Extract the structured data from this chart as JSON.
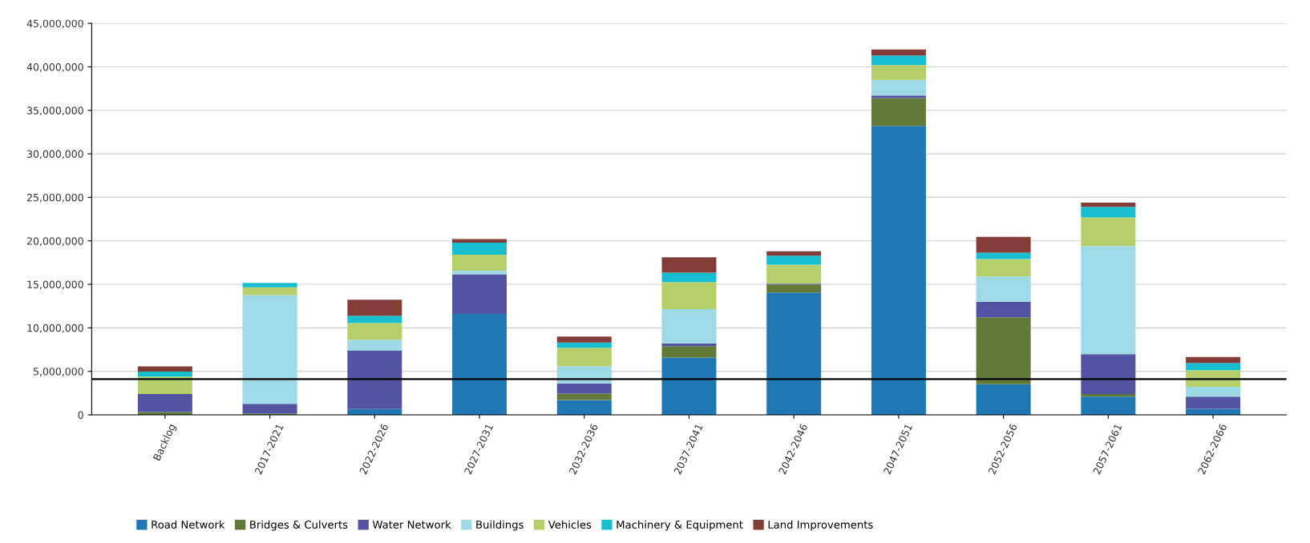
{
  "chart_data": {
    "type": "bar",
    "stacked": true,
    "categories": [
      "Backlog",
      "2017-2021",
      "2022-2026",
      "2027-2031",
      "2032-2036",
      "2037-2041",
      "2042-2046",
      "2047-2051",
      "2052-2056",
      "2057-2061",
      "2062-2066"
    ],
    "series": [
      {
        "name": "Road Network",
        "color": "#1f77b4",
        "values": [
          0,
          0,
          670000,
          11600000,
          1710000,
          6580000,
          14050000,
          33200000,
          3520000,
          2100000,
          690000
        ]
      },
      {
        "name": "Bridges & Culverts",
        "color": "#627a38",
        "values": [
          330000,
          170000,
          0,
          0,
          720000,
          1320000,
          920000,
          3200000,
          7680000,
          300000,
          0
        ]
      },
      {
        "name": "Water Network",
        "color": "#5254a3",
        "values": [
          2070000,
          1100000,
          6730000,
          4550000,
          1190000,
          320000,
          100000,
          300000,
          1800000,
          4570000,
          1410000
        ]
      },
      {
        "name": "Buildings",
        "color": "#9edae5",
        "values": [
          0,
          12500000,
          1230000,
          430000,
          1980000,
          3920000,
          0,
          1800000,
          2900000,
          12430000,
          1120000
        ]
      },
      {
        "name": "Vehicles",
        "color": "#b5cf6b",
        "values": [
          2000000,
          900000,
          1940000,
          1820000,
          2100000,
          3120000,
          2200000,
          1700000,
          2000000,
          3300000,
          1910000
        ]
      },
      {
        "name": "Machinery & Equipment",
        "color": "#17becf",
        "values": [
          570000,
          500000,
          830000,
          1400000,
          600000,
          1090000,
          1030000,
          1100000,
          750000,
          1200000,
          820000
        ]
      },
      {
        "name": "Land Improvements",
        "color": "#843c39",
        "values": [
          600000,
          0,
          1830000,
          400000,
          700000,
          1750000,
          500000,
          700000,
          1810000,
          500000,
          690000
        ]
      }
    ],
    "ylim": [
      0,
      45000000
    ],
    "yticks": [
      {
        "value": 0,
        "label": "0"
      },
      {
        "value": 5000000,
        "label": "5,000,000"
      },
      {
        "value": 10000000,
        "label": "10,000,000"
      },
      {
        "value": 15000000,
        "label": "15,000,000"
      },
      {
        "value": 20000000,
        "label": "20,000,000"
      },
      {
        "value": 25000000,
        "label": "25,000,000"
      },
      {
        "value": 30000000,
        "label": "30,000,000"
      },
      {
        "value": 35000000,
        "label": "35,000,000"
      },
      {
        "value": 40000000,
        "label": "40,000,000"
      },
      {
        "value": 45000000,
        "label": "45,000,000"
      }
    ],
    "ref_lines": [
      {
        "axis": "y",
        "value": 4110000,
        "label": null,
        "color": "#000000"
      }
    ],
    "grid": "y",
    "legend": "bottom"
  }
}
